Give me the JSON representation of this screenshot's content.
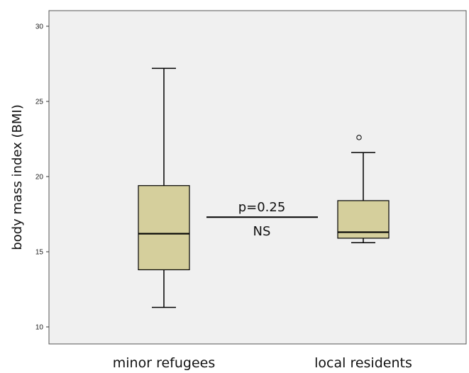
{
  "chart_data": {
    "type": "box",
    "ylabel": "body mass index (BMI)",
    "ylim": [
      9,
      32
    ],
    "yticks": [
      10,
      15,
      20,
      25,
      30
    ],
    "categories": [
      "minor refugees",
      "local residents"
    ],
    "boxes": [
      {
        "category": "minor refugees",
        "min": 11.3,
        "q1": 13.8,
        "median": 16.2,
        "q3": 19.4,
        "max": 27.2,
        "outliers": []
      },
      {
        "category": "local residents",
        "min": 15.6,
        "q1": 15.9,
        "median": 16.3,
        "q3": 18.4,
        "max": 21.6,
        "outliers": [
          22.6
        ]
      }
    ],
    "annotation": {
      "line_y": 17.3,
      "p_text": "p=0.25",
      "sig_text": "NS"
    },
    "colors": {
      "plot_bg": "#f0f0f0",
      "box_fill": "#d5cf9c",
      "stroke": "#000000"
    },
    "grid": false,
    "legend": "none"
  }
}
